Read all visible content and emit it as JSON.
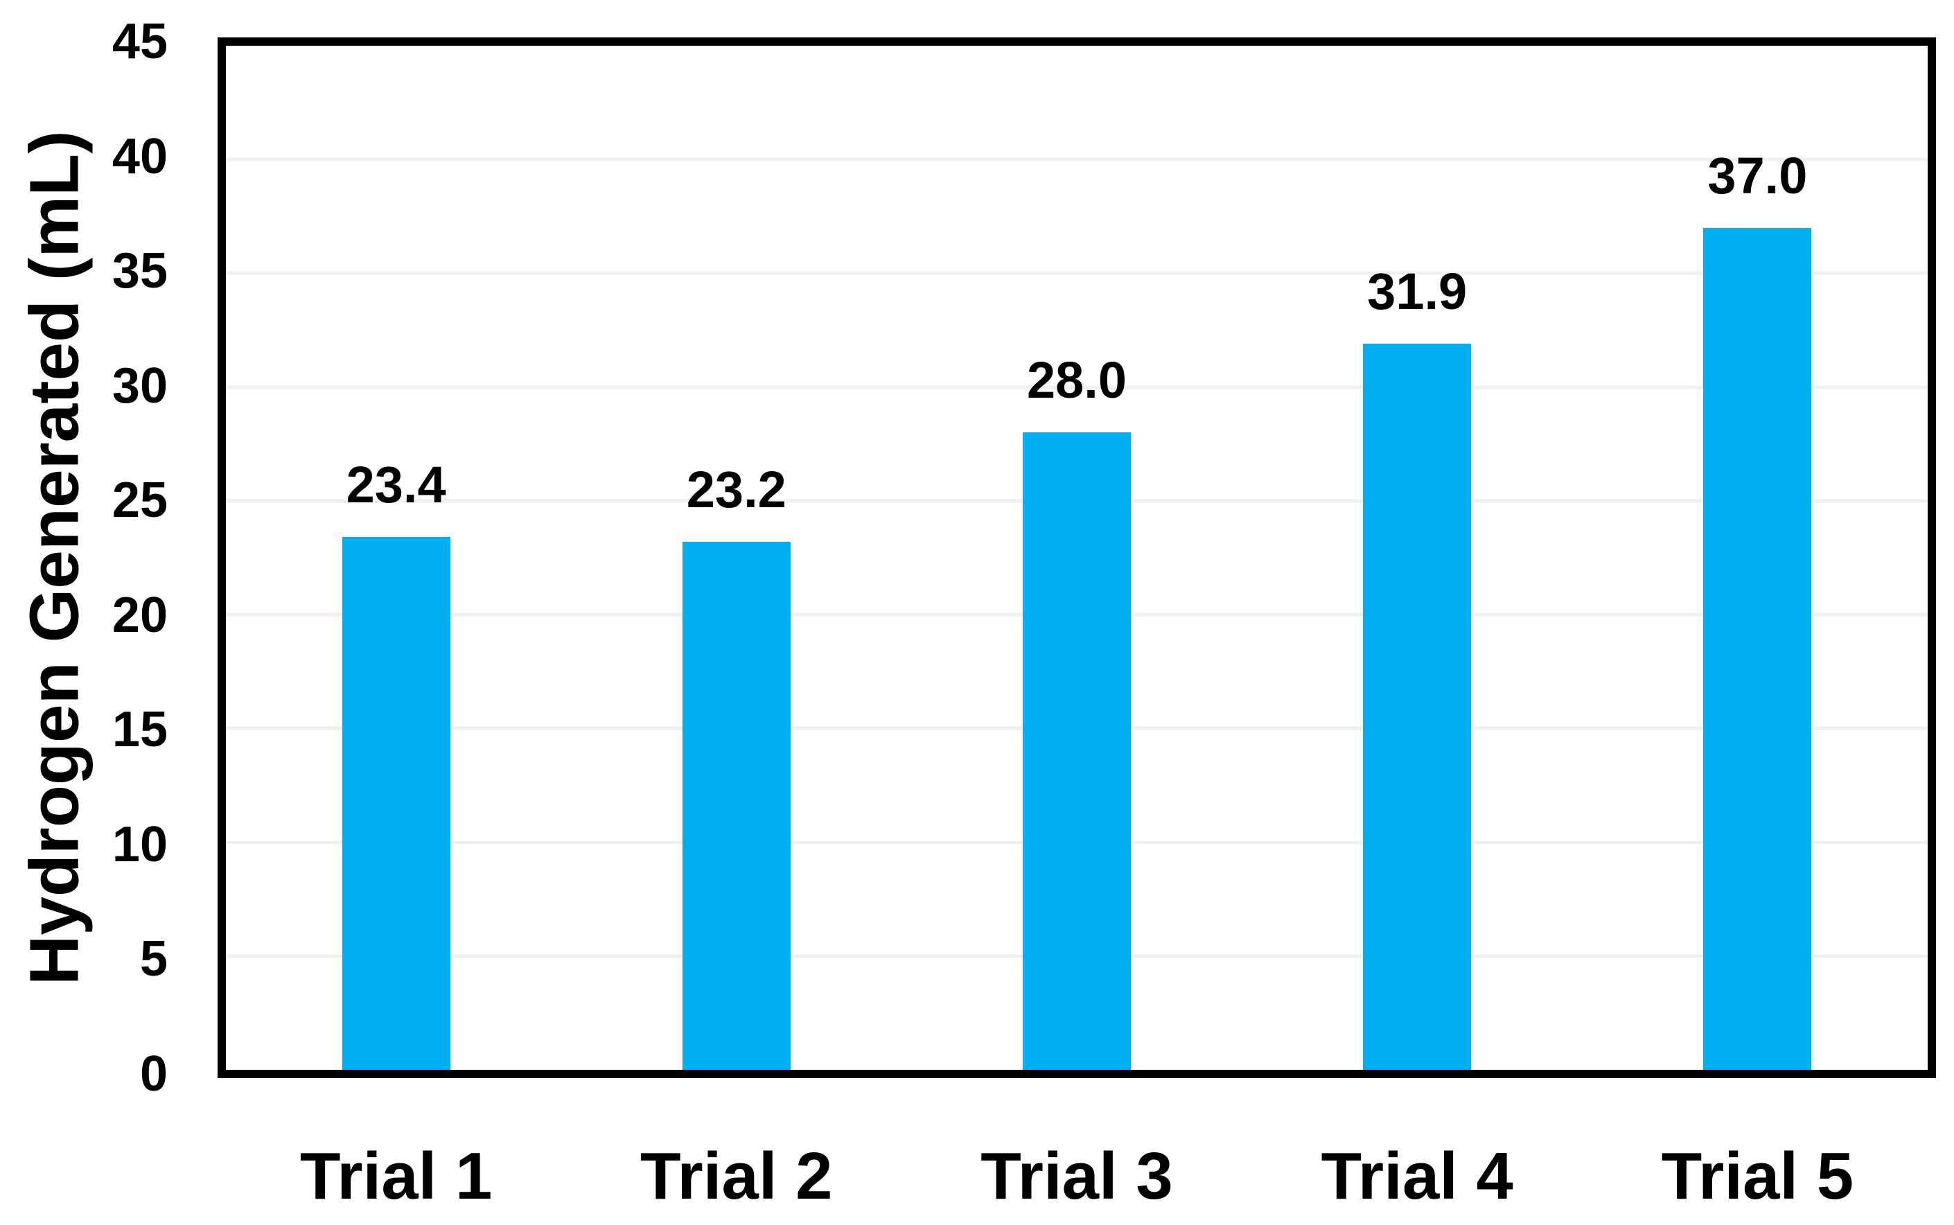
{
  "chart_data": {
    "type": "bar",
    "title": "",
    "categories": [
      "Trial 1",
      "Trial 2",
      "Trial 3",
      "Trial 4",
      "Trial 5"
    ],
    "values": [
      23.4,
      23.2,
      28.0,
      31.9,
      37.0
    ],
    "data_labels": [
      "23.4",
      "23.2",
      "28.0",
      "31.9",
      "37.0"
    ],
    "xlabel": "",
    "ylabel": "Hydrogen Generated (mL)",
    "ylim": [
      0,
      45
    ],
    "ytick_interval": 5,
    "yticks": [
      "0",
      "5",
      "10",
      "15",
      "20",
      "25",
      "30",
      "35",
      "40",
      "45"
    ],
    "grid": "horizontal",
    "legend": "none",
    "colors": {
      "bar": "#00B0F0",
      "gridline": "#F0F0F0",
      "axis": "#000000",
      "text": "#000000",
      "background": "#FFFFFF"
    }
  }
}
